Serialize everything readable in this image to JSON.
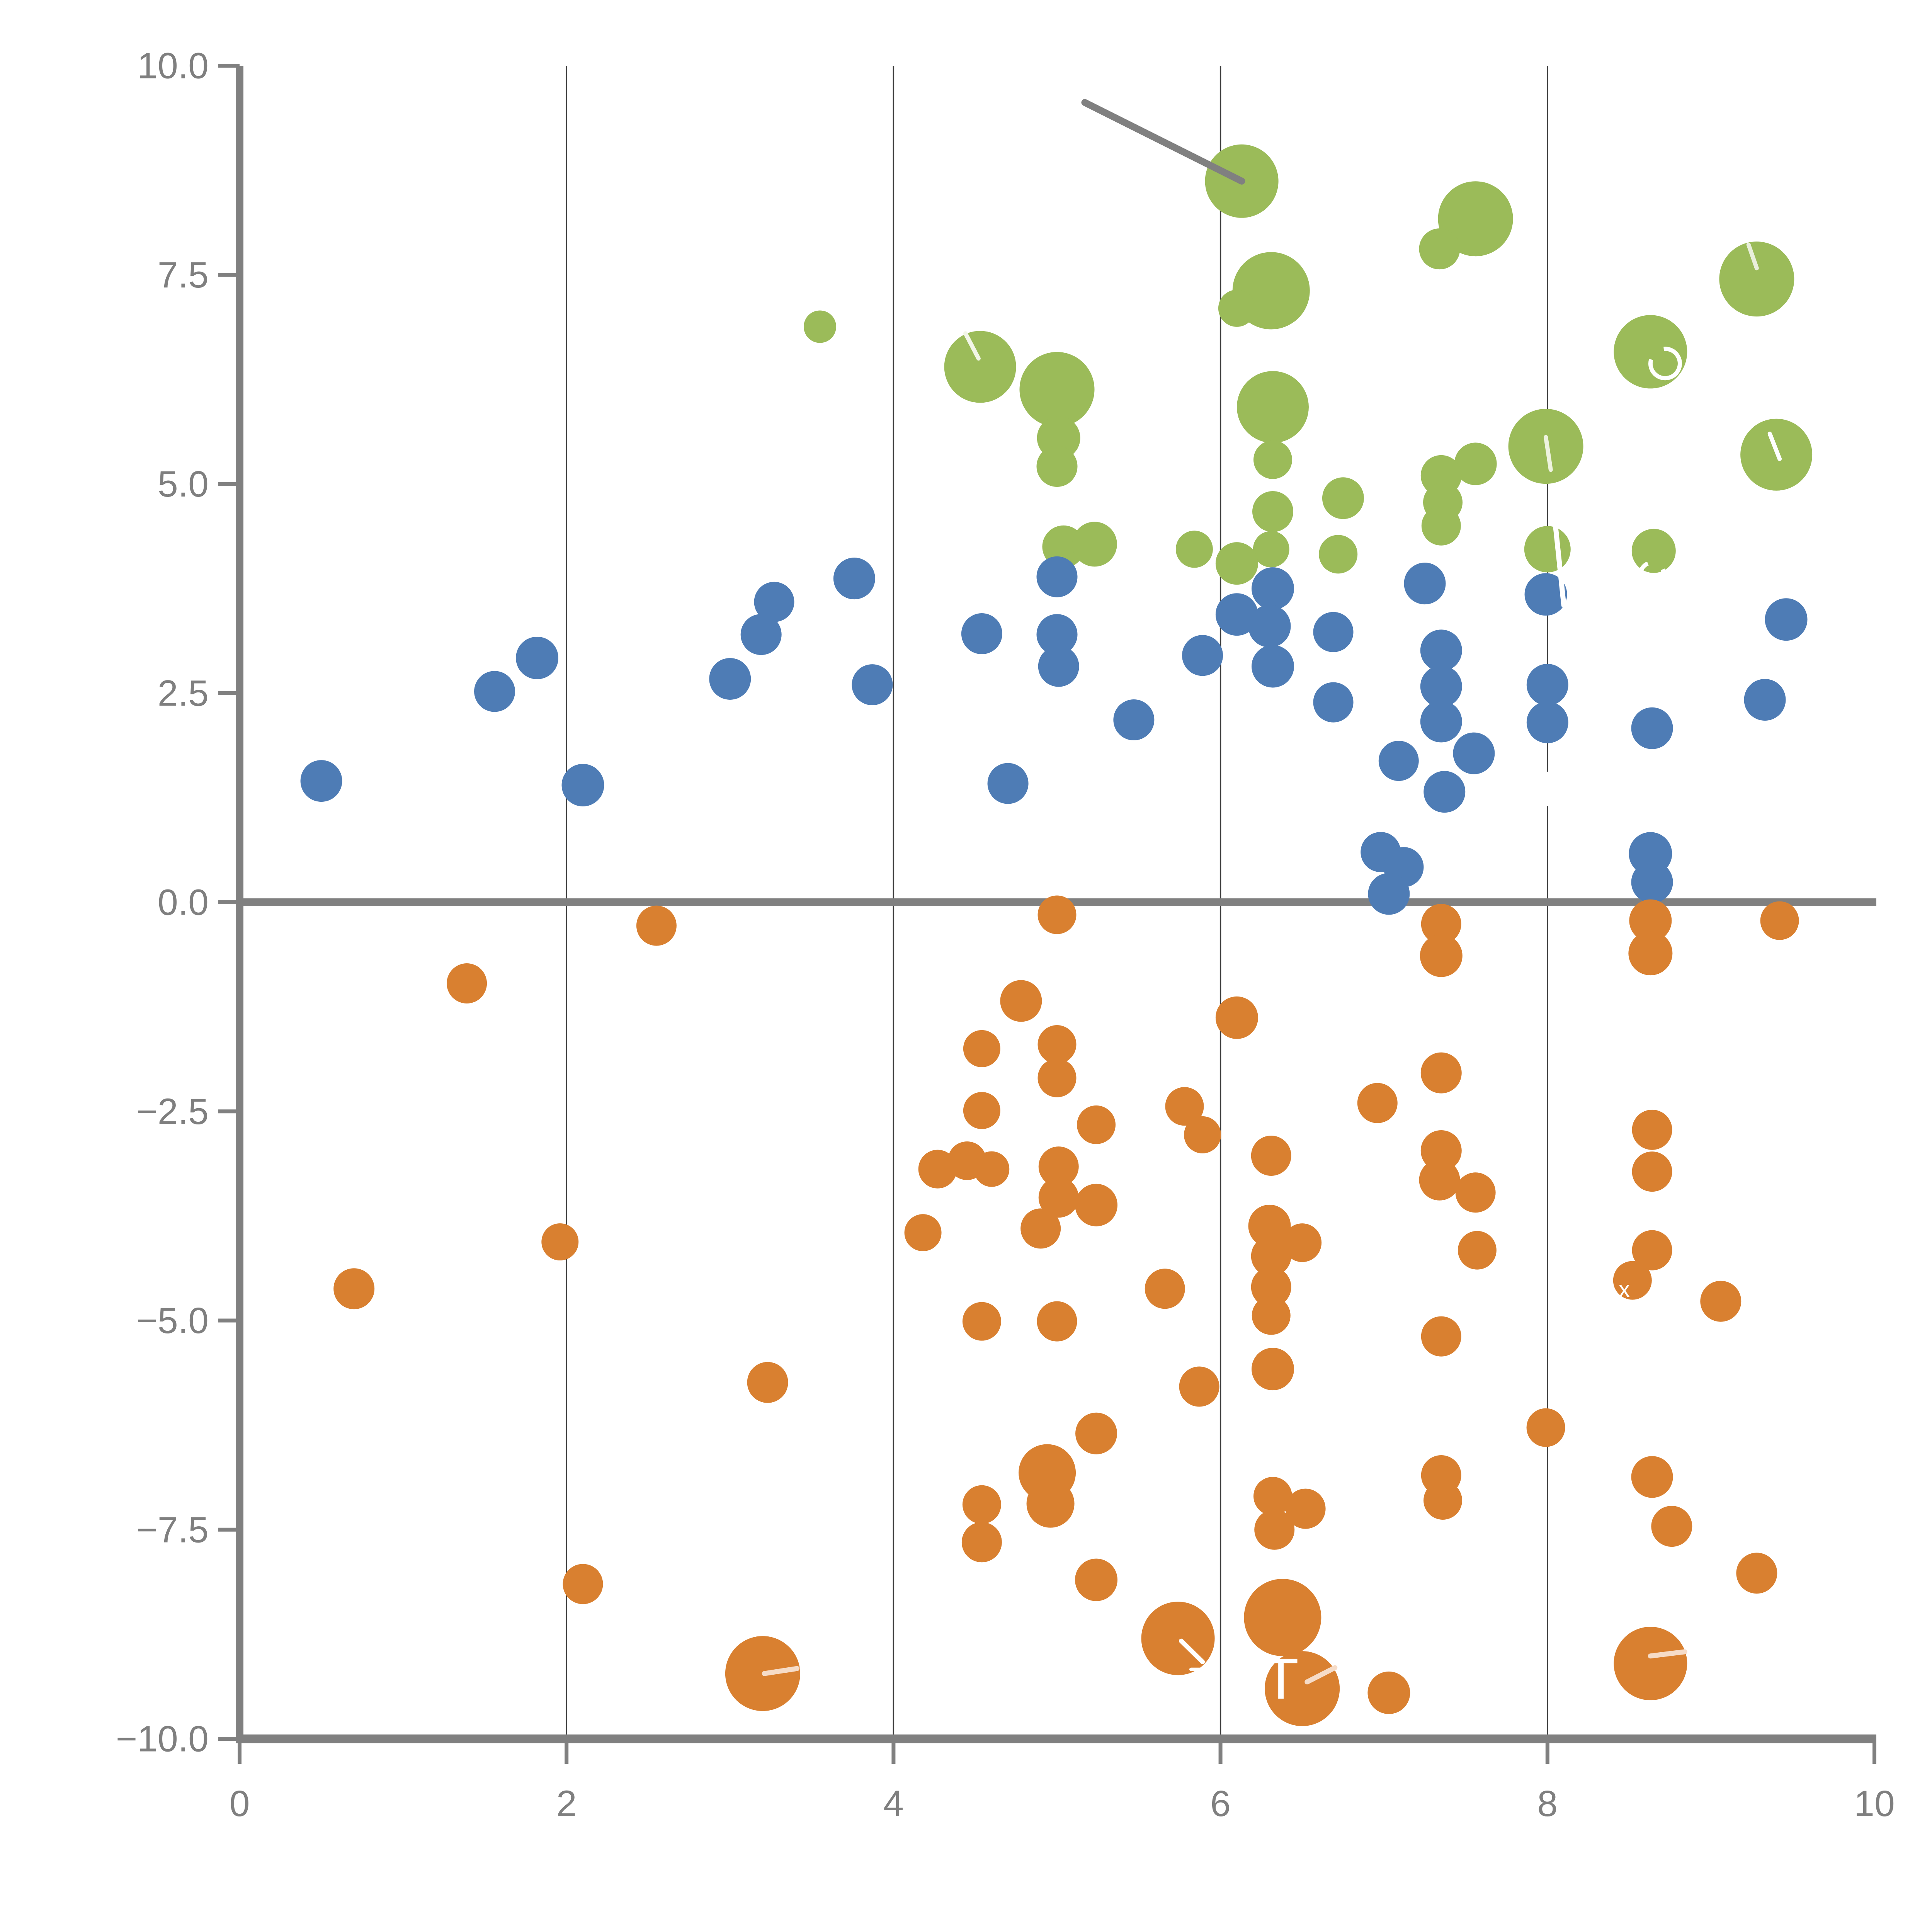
{
  "page": {
    "background": "#ffffff"
  },
  "chart_data": {
    "type": "scatter",
    "subtype": "bubble",
    "title": "",
    "xlabel": "",
    "ylabel": "",
    "xlim": [
      0,
      10
    ],
    "ylim": [
      -10,
      10
    ],
    "grid": "vertical-only",
    "legend": "none",
    "x_ticks": [
      {
        "value": 0,
        "label": "0"
      },
      {
        "value": 2,
        "label": "2"
      },
      {
        "value": 4,
        "label": "4"
      },
      {
        "value": 6,
        "label": "6"
      },
      {
        "value": 8,
        "label": "8"
      },
      {
        "value": 10,
        "label": "10"
      }
    ],
    "y_ticks": [
      {
        "value": 10,
        "label": "10.0"
      },
      {
        "value": 7.5,
        "label": "7.5"
      },
      {
        "value": 5,
        "label": "5.0"
      },
      {
        "value": 2.5,
        "label": "2.5"
      },
      {
        "value": 0,
        "label": "0.0"
      },
      {
        "value": -2.5,
        "label": "−2.5"
      },
      {
        "value": -5,
        "label": "−5.0"
      },
      {
        "value": -7.5,
        "label": "−7.5"
      },
      {
        "value": -10,
        "label": "−10.0"
      }
    ],
    "gridlines_x": [
      2,
      4,
      6,
      8
    ],
    "zero_line_y": 0,
    "colors": {
      "green": "#9bbb59",
      "blue": "#4e7cb5",
      "orange": "#d98030",
      "axis": "#808080",
      "grid": "#3a3a3a",
      "tick_label": "#7f7f7f",
      "annotation": "#808080"
    },
    "annotation_line": {
      "x1": 5.17,
      "y1": 9.56,
      "x2": 6.13,
      "y2": 8.62
    },
    "series": [
      {
        "name": "green",
        "color": "#9bbb59",
        "points": [
          {
            "x": 6.13,
            "y": 8.62,
            "r": 19.0
          },
          {
            "x": 7.56,
            "y": 8.17,
            "r": 19.4
          },
          {
            "x": 7.34,
            "y": 7.81,
            "r": 10.6
          },
          {
            "x": 9.28,
            "y": 7.45,
            "r": 19.4
          },
          {
            "x": 6.31,
            "y": 7.31,
            "r": 20.0
          },
          {
            "x": 6.1,
            "y": 7.1,
            "r": 9.6
          },
          {
            "x": 8.63,
            "y": 6.58,
            "r": 19.0
          },
          {
            "x": 3.55,
            "y": 6.88,
            "r": 8.4
          },
          {
            "x": 4.53,
            "y": 6.4,
            "r": 18.6
          },
          {
            "x": 5.0,
            "y": 6.13,
            "r": 19.4
          },
          {
            "x": 5.01,
            "y": 5.55,
            "r": 11.2
          },
          {
            "x": 5.0,
            "y": 5.21,
            "r": 10.6
          },
          {
            "x": 6.32,
            "y": 5.92,
            "r": 18.6
          },
          {
            "x": 6.32,
            "y": 5.29,
            "r": 10.0
          },
          {
            "x": 6.32,
            "y": 4.67,
            "r": 10.6
          },
          {
            "x": 6.31,
            "y": 4.22,
            "r": 9.4
          },
          {
            "x": 6.75,
            "y": 4.83,
            "r": 10.8
          },
          {
            "x": 9.4,
            "y": 5.35,
            "r": 18.6
          },
          {
            "x": 7.99,
            "y": 5.45,
            "r": 19.4
          },
          {
            "x": 7.56,
            "y": 5.24,
            "r": 11.0
          },
          {
            "x": 7.35,
            "y": 5.1,
            "r": 10.6
          },
          {
            "x": 7.36,
            "y": 4.78,
            "r": 10.2
          },
          {
            "x": 7.35,
            "y": 4.5,
            "r": 10.2
          },
          {
            "x": 5.04,
            "y": 4.25,
            "r": 11.0
          },
          {
            "x": 5.23,
            "y": 4.28,
            "r": 11.6
          },
          {
            "x": 5.84,
            "y": 4.22,
            "r": 9.6
          },
          {
            "x": 6.1,
            "y": 4.05,
            "r": 11.0
          },
          {
            "x": 6.72,
            "y": 4.16,
            "r": 10.0
          },
          {
            "x": 8.0,
            "y": 4.22,
            "r": 12.0
          },
          {
            "x": 8.65,
            "y": 4.2,
            "r": 11.4
          }
        ]
      },
      {
        "name": "blue",
        "color": "#4e7cb5",
        "points": [
          {
            "x": 0.5,
            "y": 1.45,
            "r": 10.8
          },
          {
            "x": 1.56,
            "y": 2.52,
            "r": 10.6
          },
          {
            "x": 1.82,
            "y": 2.92,
            "r": 11.0
          },
          {
            "x": 2.1,
            "y": 1.4,
            "r": 11.0
          },
          {
            "x": 3.0,
            "y": 2.67,
            "r": 10.8
          },
          {
            "x": 3.27,
            "y": 3.59,
            "r": 10.4
          },
          {
            "x": 3.19,
            "y": 3.2,
            "r": 10.6
          },
          {
            "x": 3.76,
            "y": 3.87,
            "r": 10.8
          },
          {
            "x": 3.87,
            "y": 2.6,
            "r": 10.6
          },
          {
            "x": 4.54,
            "y": 3.21,
            "r": 10.6
          },
          {
            "x": 5.0,
            "y": 3.89,
            "r": 10.6
          },
          {
            "x": 5.0,
            "y": 3.2,
            "r": 10.6
          },
          {
            "x": 5.01,
            "y": 2.82,
            "r": 10.6
          },
          {
            "x": 5.47,
            "y": 2.18,
            "r": 10.6
          },
          {
            "x": 4.7,
            "y": 1.42,
            "r": 10.6
          },
          {
            "x": 5.89,
            "y": 2.95,
            "r": 10.6
          },
          {
            "x": 6.1,
            "y": 3.44,
            "r": 11.0
          },
          {
            "x": 6.32,
            "y": 3.75,
            "r": 11.0
          },
          {
            "x": 6.3,
            "y": 3.3,
            "r": 11.0
          },
          {
            "x": 6.32,
            "y": 2.82,
            "r": 11.0
          },
          {
            "x": 6.69,
            "y": 3.23,
            "r": 10.4
          },
          {
            "x": 6.69,
            "y": 2.39,
            "r": 10.4
          },
          {
            "x": 7.25,
            "y": 3.81,
            "r": 10.8
          },
          {
            "x": 7.35,
            "y": 3.01,
            "r": 10.8
          },
          {
            "x": 7.35,
            "y": 2.58,
            "r": 10.8
          },
          {
            "x": 7.35,
            "y": 2.16,
            "r": 10.8
          },
          {
            "x": 7.09,
            "y": 1.69,
            "r": 10.4
          },
          {
            "x": 7.37,
            "y": 1.32,
            "r": 10.8
          },
          {
            "x": 7.55,
            "y": 1.78,
            "r": 10.8
          },
          {
            "x": 7.99,
            "y": 3.68,
            "r": 11.0
          },
          {
            "x": 8.0,
            "y": 2.6,
            "r": 10.8
          },
          {
            "x": 8.0,
            "y": 2.15,
            "r": 10.8
          },
          {
            "x": 8.64,
            "y": 2.08,
            "r": 10.8
          },
          {
            "x": 9.46,
            "y": 3.38,
            "r": 11.0
          },
          {
            "x": 9.33,
            "y": 2.42,
            "r": 10.8
          },
          {
            "x": 8.63,
            "y": 0.58,
            "r": 11.2
          },
          {
            "x": 8.64,
            "y": 0.24,
            "r": 10.8
          },
          {
            "x": 6.98,
            "y": 0.6,
            "r": 10.4
          },
          {
            "x": 7.12,
            "y": 0.42,
            "r": 10.4
          },
          {
            "x": 7.03,
            "y": 0.1,
            "r": 10.8
          }
        ]
      },
      {
        "name": "orange",
        "color": "#d98030",
        "points": [
          {
            "x": 5.0,
            "y": -0.15,
            "r": 10.0
          },
          {
            "x": 2.55,
            "y": -0.28,
            "r": 10.4
          },
          {
            "x": 1.39,
            "y": -0.97,
            "r": 10.4
          },
          {
            "x": 4.78,
            "y": -1.18,
            "r": 10.8
          },
          {
            "x": 6.1,
            "y": -1.38,
            "r": 11.0
          },
          {
            "x": 4.54,
            "y": -1.75,
            "r": 9.6
          },
          {
            "x": 5.0,
            "y": -1.7,
            "r": 10.0
          },
          {
            "x": 5.0,
            "y": -2.1,
            "r": 10.0
          },
          {
            "x": 4.54,
            "y": -2.49,
            "r": 9.6
          },
          {
            "x": 5.24,
            "y": -2.66,
            "r": 10.0
          },
          {
            "x": 5.78,
            "y": -2.44,
            "r": 10.0
          },
          {
            "x": 5.89,
            "y": -2.78,
            "r": 9.6
          },
          {
            "x": 4.27,
            "y": -3.19,
            "r": 10.0
          },
          {
            "x": 4.45,
            "y": -3.09,
            "r": 10.0
          },
          {
            "x": 4.6,
            "y": -3.19,
            "r": 9.2
          },
          {
            "x": 4.18,
            "y": -3.95,
            "r": 9.6
          },
          {
            "x": 5.01,
            "y": -3.16,
            "r": 10.4
          },
          {
            "x": 5.01,
            "y": -3.53,
            "r": 10.4
          },
          {
            "x": 4.9,
            "y": -3.9,
            "r": 10.4
          },
          {
            "x": 5.24,
            "y": -3.62,
            "r": 11.0
          },
          {
            "x": 5.66,
            "y": -4.62,
            "r": 10.4
          },
          {
            "x": 4.54,
            "y": -5.01,
            "r": 10.0
          },
          {
            "x": 5.0,
            "y": -5.01,
            "r": 10.4
          },
          {
            "x": 5.24,
            "y": -6.35,
            "r": 10.8
          },
          {
            "x": 5.87,
            "y": -5.79,
            "r": 10.4
          },
          {
            "x": 6.31,
            "y": -3.03,
            "r": 10.4
          },
          {
            "x": 6.3,
            "y": -3.87,
            "r": 11.0
          },
          {
            "x": 6.31,
            "y": -4.23,
            "r": 10.4
          },
          {
            "x": 6.5,
            "y": -4.07,
            "r": 10.0
          },
          {
            "x": 6.31,
            "y": -4.6,
            "r": 10.4
          },
          {
            "x": 6.31,
            "y": -4.94,
            "r": 10.0
          },
          {
            "x": 6.32,
            "y": -5.58,
            "r": 11.0
          },
          {
            "x": 6.96,
            "y": -2.4,
            "r": 10.4
          },
          {
            "x": 7.35,
            "y": -2.04,
            "r": 10.6
          },
          {
            "x": 7.35,
            "y": -2.97,
            "r": 10.6
          },
          {
            "x": 7.34,
            "y": -3.32,
            "r": 10.6
          },
          {
            "x": 7.56,
            "y": -3.47,
            "r": 10.4
          },
          {
            "x": 7.57,
            "y": -4.16,
            "r": 10.0
          },
          {
            "x": 8.64,
            "y": -2.72,
            "r": 10.4
          },
          {
            "x": 8.64,
            "y": -3.22,
            "r": 10.4
          },
          {
            "x": 8.64,
            "y": -4.16,
            "r": 10.4
          },
          {
            "x": 8.52,
            "y": -4.52,
            "r": 10.0
          },
          {
            "x": 9.06,
            "y": -4.77,
            "r": 10.6
          },
          {
            "x": 7.35,
            "y": -5.19,
            "r": 10.4
          },
          {
            "x": 7.99,
            "y": -6.28,
            "r": 10.0
          },
          {
            "x": 8.64,
            "y": -6.87,
            "r": 10.8
          },
          {
            "x": 8.76,
            "y": -7.46,
            "r": 10.6
          },
          {
            "x": 9.28,
            "y": -8.02,
            "r": 10.6
          },
          {
            "x": 8.63,
            "y": -9.1,
            "r": 19.0
          },
          {
            "x": 7.35,
            "y": -6.85,
            "r": 10.4
          },
          {
            "x": 7.36,
            "y": -7.15,
            "r": 10.0
          },
          {
            "x": 4.94,
            "y": -6.82,
            "r": 14.8
          },
          {
            "x": 4.96,
            "y": -7.19,
            "r": 12.4
          },
          {
            "x": 4.54,
            "y": -7.2,
            "r": 10.0
          },
          {
            "x": 4.54,
            "y": -7.65,
            "r": 10.4
          },
          {
            "x": 5.24,
            "y": -8.1,
            "r": 11.0
          },
          {
            "x": 5.74,
            "y": -8.8,
            "r": 19.0
          },
          {
            "x": 6.38,
            "y": -8.55,
            "r": 20.0
          },
          {
            "x": 6.5,
            "y": -9.4,
            "r": 19.4
          },
          {
            "x": 6.32,
            "y": -7.1,
            "r": 10.0
          },
          {
            "x": 6.33,
            "y": -7.5,
            "r": 10.4
          },
          {
            "x": 6.52,
            "y": -7.25,
            "r": 10.4
          },
          {
            "x": 0.7,
            "y": -4.62,
            "r": 10.6
          },
          {
            "x": 1.96,
            "y": -4.06,
            "r": 9.6
          },
          {
            "x": 3.23,
            "y": -5.74,
            "r": 10.6
          },
          {
            "x": 2.1,
            "y": -8.15,
            "r": 10.4
          },
          {
            "x": 3.2,
            "y": -9.22,
            "r": 19.4
          },
          {
            "x": 9.42,
            "y": -0.22,
            "r": 10.0
          },
          {
            "x": 8.63,
            "y": -0.22,
            "r": 11.0
          },
          {
            "x": 8.63,
            "y": -0.61,
            "r": 11.4
          },
          {
            "x": 7.35,
            "y": -0.26,
            "r": 10.4
          },
          {
            "x": 7.35,
            "y": -0.64,
            "r": 11.0
          },
          {
            "x": 7.03,
            "y": -9.45,
            "r": 11.0
          }
        ]
      }
    ],
    "white_fragments": [
      {
        "type": "line",
        "x1": 4.44,
        "y1": 6.8,
        "x2": 4.52,
        "y2": 6.5,
        "color": "#f2f6e7",
        "w": 2.2
      },
      {
        "type": "line",
        "x1": 7.99,
        "y1": 5.56,
        "x2": 8.02,
        "y2": 5.17,
        "color": "#eef3df",
        "w": 2.2
      },
      {
        "type": "line",
        "x1": 9.36,
        "y1": 5.6,
        "x2": 9.42,
        "y2": 5.3,
        "color": "#ffffff",
        "w": 2.2
      },
      {
        "type": "line",
        "x1": 9.23,
        "y1": 7.86,
        "x2": 9.28,
        "y2": 7.58,
        "color": "#e9efdb",
        "w": 2.2
      },
      {
        "type": "ring",
        "x": 8.72,
        "y": 6.44,
        "r": 7.6,
        "color": "#ffffff",
        "w": 2.2
      },
      {
        "type": "ring",
        "x": 8.64,
        "y": 3.92,
        "r": 6.0,
        "color": "#ffffff",
        "w": 2.2
      },
      {
        "type": "line",
        "x1": 8.04,
        "y1": 4.67,
        "x2": 8.1,
        "y2": 3.55,
        "color": "#ffffff",
        "w": 2.6
      },
      {
        "type": "line",
        "x1": 8.0,
        "y1": 1.54,
        "x2": 8.0,
        "y2": 1.17,
        "color": "#ffffff",
        "w": 1.8
      },
      {
        "type": "text",
        "x": 6.37,
        "y": -9.52,
        "text": "T",
        "color": "#ffffff",
        "size": 30
      },
      {
        "type": "line",
        "x1": 6.53,
        "y1": -9.32,
        "x2": 6.7,
        "y2": -9.15,
        "color": "#f6dcc8",
        "w": 2.6
      },
      {
        "type": "line",
        "x1": 5.76,
        "y1": -8.83,
        "x2": 5.89,
        "y2": -9.08,
        "color": "#ffffff",
        "w": 2.4
      },
      {
        "type": "line",
        "x1": 5.82,
        "y1": -9.17,
        "x2": 5.96,
        "y2": -9.17,
        "color": "#ffffff",
        "w": 1.8
      },
      {
        "type": "line",
        "x1": 8.63,
        "y1": -9.01,
        "x2": 8.84,
        "y2": -8.96,
        "color": "#f6dcc8",
        "w": 2.6
      },
      {
        "type": "line",
        "x1": 3.21,
        "y1": -9.22,
        "x2": 3.41,
        "y2": -9.16,
        "color": "#f6dcc8",
        "w": 2.6
      },
      {
        "type": "text",
        "x": 8.47,
        "y": -4.72,
        "text": "x",
        "color": "#ffffff",
        "size": 12
      },
      {
        "type": "line",
        "x1": 5.6,
        "y1": 8.84,
        "x2": 5.77,
        "y2": 8.6,
        "color": "rgba(255,255,255,0.55)",
        "w": 2.6
      }
    ]
  }
}
